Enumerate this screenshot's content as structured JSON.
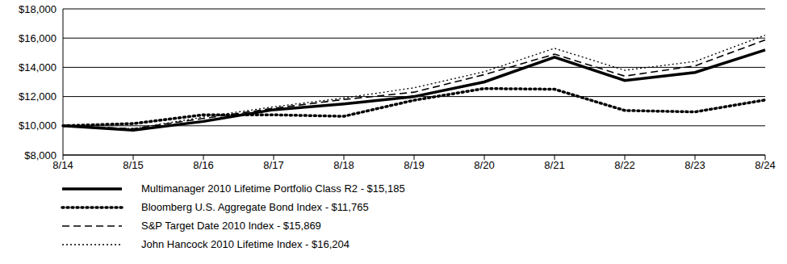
{
  "chart_data": {
    "type": "line",
    "categories": [
      "8/14",
      "8/15",
      "8/16",
      "8/17",
      "8/18",
      "8/19",
      "8/20",
      "8/21",
      "8/22",
      "8/23",
      "8/24"
    ],
    "series": [
      {
        "name": "Multimanager 2010 Lifetime Portfolio Class R2 - $15,185",
        "color": "#000000",
        "line_style": "solid",
        "values": [
          10000,
          9700,
          10300,
          11100,
          11500,
          12000,
          13000,
          14700,
          13100,
          13650,
          15185
        ]
      },
      {
        "name": "Bloomberg U.S. Aggregate Bond Index - $11,765",
        "color": "#000000",
        "line_style": "dotted",
        "values": [
          10000,
          10150,
          10750,
          10750,
          10650,
          11750,
          12550,
          12500,
          11050,
          10950,
          11765
        ]
      },
      {
        "name": "S&P Target Date 2010 Index - $15,869",
        "color": "#000000",
        "line_style": "dashed",
        "values": [
          10000,
          9800,
          10500,
          11200,
          11800,
          12300,
          13500,
          14900,
          13400,
          14100,
          15869
        ]
      },
      {
        "name": "John Hancock 2010 Lifetime Index - $16,204",
        "color": "#000000",
        "line_style": "dotted",
        "values": [
          10000,
          9800,
          10600,
          11300,
          11900,
          12600,
          13700,
          15300,
          13800,
          14400,
          16204
        ]
      }
    ],
    "ylim": [
      8000,
      18000
    ],
    "yticks": [
      {
        "value": 8000,
        "label": "$8,000"
      },
      {
        "value": 10000,
        "label": "$10,000"
      },
      {
        "value": 12000,
        "label": "$12,000"
      },
      {
        "value": 14000,
        "label": "$14,000"
      },
      {
        "value": 16000,
        "label": "$16,000"
      },
      {
        "value": 18000,
        "label": "$18,000"
      }
    ],
    "grid": true,
    "legend": "bottom"
  }
}
